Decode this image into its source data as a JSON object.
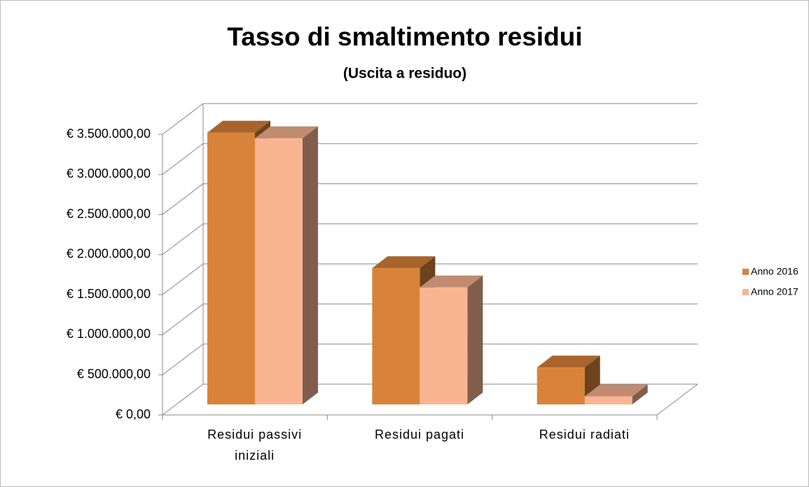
{
  "chart_data": {
    "type": "bar3d",
    "title": "Tasso di smaltimento residui",
    "subtitle": "(Uscita a residuo)",
    "categories": [
      "Residui passivi iniziali",
      "Residui pagati",
      "Residui radiati"
    ],
    "series": [
      {
        "name": "Anno 2016",
        "color": "#d9833a",
        "values": [
          3390000,
          1700000,
          460000
        ]
      },
      {
        "name": "Anno 2017",
        "color": "#f9b591",
        "values": [
          3320000,
          1460000,
          100000
        ]
      }
    ],
    "ylim": [
      0,
      3500000
    ],
    "yticks": [
      {
        "value": 0,
        "label": "€ 0,00"
      },
      {
        "value": 500000,
        "label": "€ 500.000,00"
      },
      {
        "value": 1000000,
        "label": "€ 1.000.000,00"
      },
      {
        "value": 1500000,
        "label": "€ 1.500.000,00"
      },
      {
        "value": 2000000,
        "label": "€ 2.000.000,00"
      },
      {
        "value": 2500000,
        "label": "€ 2.500.000,00"
      },
      {
        "value": 3000000,
        "label": "€ 3.000.000,00"
      },
      {
        "value": 3500000,
        "label": "€ 3.500.000,00"
      }
    ],
    "grid": true,
    "legend": "right"
  }
}
